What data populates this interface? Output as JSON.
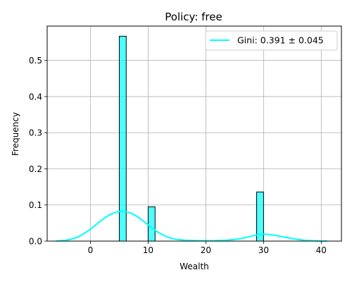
{
  "chart_data": {
    "type": "bar",
    "title": "Policy: free",
    "xlabel": "Wealth",
    "ylabel": "Frequency",
    "xlim": [
      -7.5,
      43.5
    ],
    "ylim": [
      0,
      0.595
    ],
    "xticks": [
      0,
      10,
      20,
      30,
      40
    ],
    "yticks": [
      0.0,
      0.1,
      0.2,
      0.3,
      0.4,
      0.5
    ],
    "grid": true,
    "legend_position": "top-right",
    "colors": {
      "bar_fill": "#00ffff",
      "bar_fill_opacity": 0.7,
      "bar_edge": "#000000",
      "line": "#00ffff",
      "grid": "#b0b0b0"
    },
    "bars": [
      {
        "x0": 5.0,
        "x1": 6.2,
        "value": 0.567
      },
      {
        "x0": 10.0,
        "x1": 11.2,
        "value": 0.095
      },
      {
        "x0": 28.8,
        "x1": 30.0,
        "value": 0.136
      }
    ],
    "series": [
      {
        "type": "line",
        "legend": "Gini: 0.391 ± 0.045",
        "x": [
          -6.0,
          -4.0,
          -2.0,
          0.0,
          2.0,
          3.5,
          5.0,
          6.5,
          8.0,
          10.0,
          12.0,
          14.0,
          16.0,
          18.0,
          20.0,
          22.0,
          24.0,
          26.0,
          28.0,
          29.5,
          31.0,
          33.0,
          35.0,
          37.0,
          39.0,
          41.0
        ],
        "y": [
          0.0005,
          0.003,
          0.013,
          0.033,
          0.059,
          0.074,
          0.082,
          0.08,
          0.069,
          0.045,
          0.022,
          0.008,
          0.003,
          0.0015,
          0.001,
          0.0015,
          0.003,
          0.007,
          0.014,
          0.019,
          0.018,
          0.013,
          0.007,
          0.0025,
          0.0008,
          0.0002
        ]
      }
    ]
  }
}
